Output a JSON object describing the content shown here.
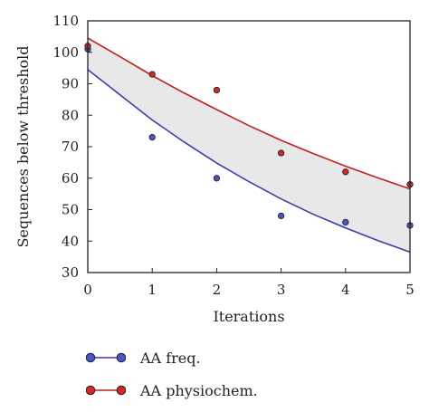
{
  "chart_data": {
    "type": "scatter",
    "title": "",
    "xlabel": "Iterations",
    "ylabel": "Sequences below threshold",
    "xlim": [
      0,
      5
    ],
    "ylim": [
      30,
      110
    ],
    "xticks": [
      0,
      1,
      2,
      3,
      4,
      5
    ],
    "yticks": [
      30,
      40,
      50,
      60,
      70,
      80,
      90,
      100,
      110
    ],
    "grid": false,
    "legend_position": "bottom",
    "shaded_band": {
      "between": [
        "AA freq.",
        "AA physiochem."
      ],
      "color": "#e8e8e8"
    },
    "series": [
      {
        "name": "AA freq.",
        "color": "#3b3ea8",
        "marker_fill": "#4a55c8",
        "points": {
          "x": [
            0,
            1,
            2,
            3,
            4,
            5
          ],
          "y": [
            101,
            73,
            60,
            48,
            46,
            45
          ]
        },
        "fit": {
          "x": [
            0,
            0.5,
            1,
            1.5,
            2,
            2.5,
            3,
            3.5,
            4,
            4.5,
            5
          ],
          "y": [
            94.5,
            86.5,
            78.5,
            71.4,
            64.8,
            58.9,
            53.4,
            48.5,
            44.2,
            40.2,
            36.5
          ]
        }
      },
      {
        "name": "AA physiochem.",
        "color": "#c0201d",
        "marker_fill": "#d2282a",
        "points": {
          "x": [
            0,
            1,
            2,
            3,
            4,
            5
          ],
          "y": [
            102,
            93,
            88,
            68,
            62,
            58
          ]
        },
        "fit": {
          "x": [
            0,
            0.5,
            1,
            1.5,
            2,
            2.5,
            3,
            3.5,
            4,
            4.5,
            5
          ],
          "y": [
            104.5,
            98.6,
            92.6,
            87.0,
            81.8,
            76.7,
            72.0,
            67.8,
            63.8,
            60.1,
            56.6
          ]
        }
      }
    ]
  }
}
